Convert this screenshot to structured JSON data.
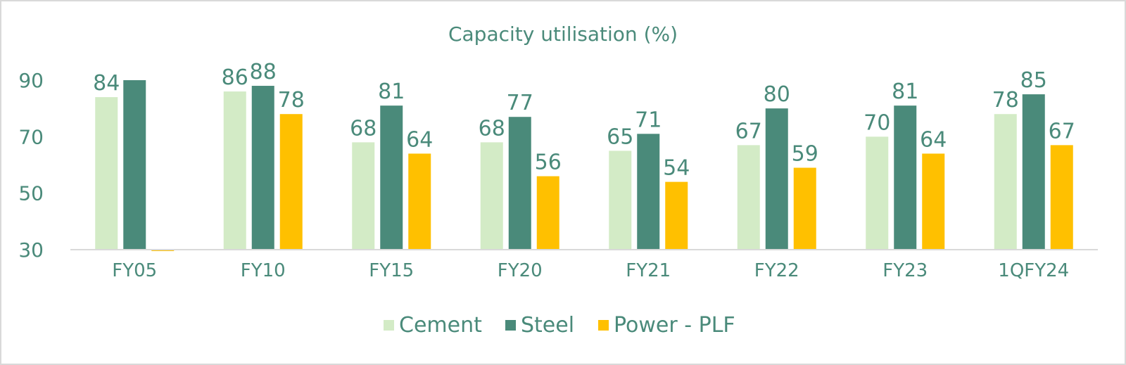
{
  "chart_data": {
    "type": "bar",
    "title": "Capacity utilisation (%)",
    "categories": [
      "FY05",
      "FY10",
      "FY15",
      "FY20",
      "FY21",
      "FY22",
      "FY23",
      "1QFY24"
    ],
    "series": [
      {
        "name": "Cement",
        "values": [
          84,
          86,
          68,
          68,
          65,
          67,
          70,
          78
        ],
        "labels": [
          "84",
          "86",
          "68",
          "68",
          "65",
          "67",
          "70",
          "78"
        ],
        "color": "#d3ebc6"
      },
      {
        "name": "Steel",
        "values": [
          90,
          88,
          81,
          77,
          71,
          80,
          81,
          85
        ],
        "labels": [
          "",
          "88",
          "81",
          "77",
          "71",
          "80",
          "81",
          "85"
        ],
        "color": "#4a8a7a"
      },
      {
        "name": "Power - PLF",
        "values": [
          29.5,
          78,
          64,
          56,
          54,
          59,
          64,
          67
        ],
        "labels": [
          "",
          "78",
          "64",
          "56",
          "54",
          "59",
          "64",
          "67"
        ],
        "color": "#ffc000"
      }
    ],
    "yticks": [
      "30",
      "50",
      "70",
      "90"
    ],
    "ylim": [
      30,
      90
    ],
    "grid": false,
    "legend": "bottom"
  }
}
